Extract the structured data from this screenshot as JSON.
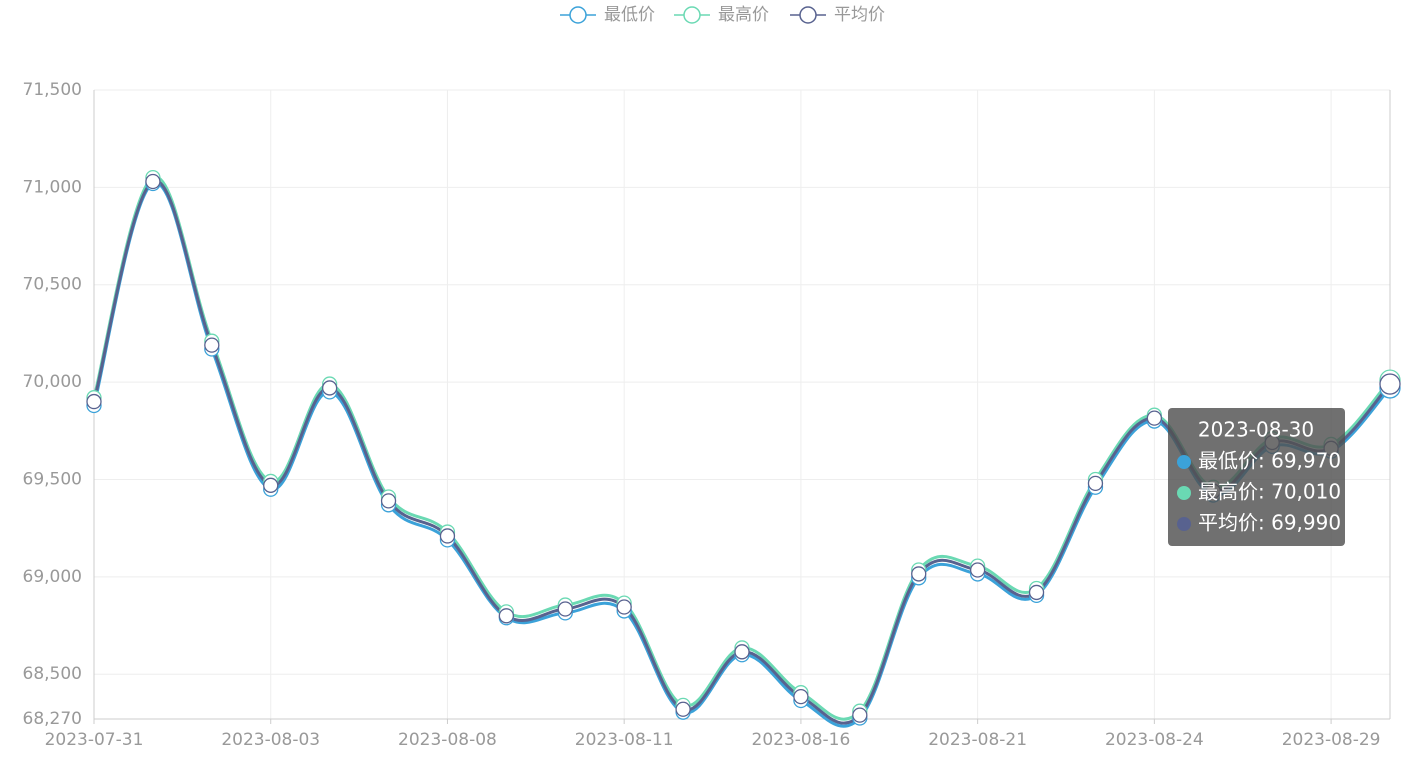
{
  "chart_data": {
    "type": "line",
    "smooth": true,
    "categories": [
      "2023-07-31",
      null,
      null,
      "2023-08-03",
      null,
      null,
      "2023-08-08",
      null,
      null,
      "2023-08-11",
      null,
      null,
      "2023-08-16",
      null,
      null,
      "2023-08-21",
      null,
      null,
      "2023-08-24",
      null,
      null,
      "2023-08-29",
      "2023-08-30"
    ],
    "series": [
      {
        "name": "最低价",
        "color": "#3ba2d9",
        "values": [
          69880,
          71020,
          70170,
          69450,
          69950,
          69370,
          69190,
          68790,
          68815,
          68825,
          68305,
          68600,
          68365,
          68275,
          68995,
          69015,
          68905,
          69460,
          69800,
          69420,
          69670,
          69645,
          69970
        ]
      },
      {
        "name": "最高价",
        "color": "#6ad9b3",
        "values": [
          69920,
          71050,
          70210,
          69490,
          69990,
          69410,
          69230,
          68820,
          68855,
          68865,
          68340,
          68635,
          68405,
          68310,
          69035,
          69055,
          68940,
          69500,
          69830,
          69460,
          69710,
          69680,
          70010
        ]
      },
      {
        "name": "平均价",
        "color": "#58628f",
        "values": [
          69900,
          71030,
          70190,
          69470,
          69970,
          69390,
          69210,
          68800,
          68835,
          68845,
          68320,
          68615,
          68385,
          68290,
          69015,
          69035,
          68920,
          69480,
          69815,
          69440,
          69690,
          69660,
          69990
        ]
      }
    ],
    "ylim": [
      68270,
      71500
    ],
    "yticks": [
      {
        "value": 68270,
        "label": "68,270"
      },
      {
        "value": 68500,
        "label": "68,500"
      },
      {
        "value": 69000,
        "label": "69,000"
      },
      {
        "value": 69500,
        "label": "69,500"
      },
      {
        "value": 70000,
        "label": "70,000"
      },
      {
        "value": 70500,
        "label": "70,500"
      },
      {
        "value": 71000,
        "label": "71,000"
      },
      {
        "value": 71500,
        "label": "71,500"
      }
    ],
    "grid": true,
    "legend": "top",
    "tooltip": {
      "lines": [
        "最低价: 69,970",
        "最高价: 70,010",
        "平均价: 69,990"
      ]
    }
  }
}
